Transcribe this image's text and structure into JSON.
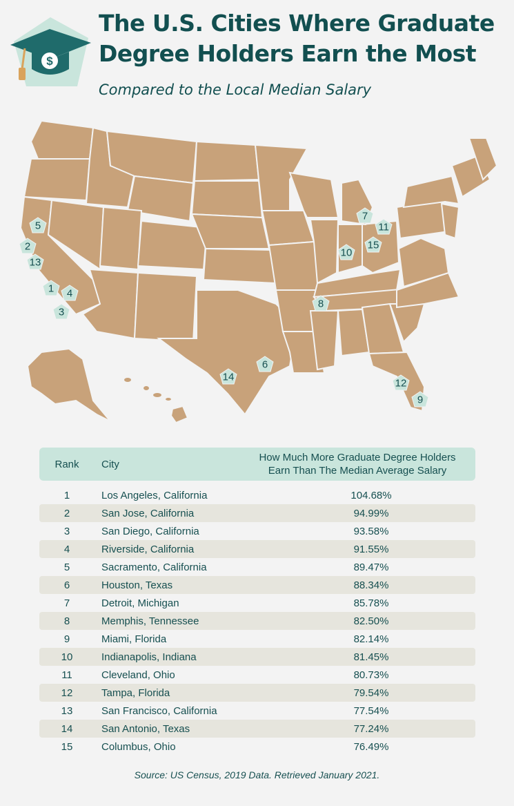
{
  "header": {
    "title_line1": "The U.S. Cities Where Graduate",
    "title_line2": "Degree Holders Earn the Most",
    "subtitle": "Compared to the Local Median Salary",
    "icon": "graduation-cap-dollar-icon"
  },
  "colors": {
    "background": "#f3f3f3",
    "state_fill": "#c8a27a",
    "marker_fill": "#c9e5dc",
    "text": "#164f50",
    "alt_row": "#e6e5dd"
  },
  "map": {
    "markers": [
      "1",
      "2",
      "3",
      "4",
      "5",
      "6",
      "7",
      "8",
      "9",
      "10",
      "11",
      "12",
      "13",
      "14",
      "15"
    ]
  },
  "table": {
    "headers": {
      "rank": "Rank",
      "city": "City",
      "pct_line1": "How Much More Graduate Degree Holders",
      "pct_line2": "Earn Than The Median Average Salary"
    },
    "rows": [
      {
        "rank": "1",
        "city": "Los Angeles, California",
        "pct": "104.68%"
      },
      {
        "rank": "2",
        "city": "San Jose, California",
        "pct": "94.99%"
      },
      {
        "rank": "3",
        "city": "San Diego, California",
        "pct": "93.58%"
      },
      {
        "rank": "4",
        "city": "Riverside, California",
        "pct": "91.55%"
      },
      {
        "rank": "5",
        "city": "Sacramento, California",
        "pct": "89.47%"
      },
      {
        "rank": "6",
        "city": "Houston, Texas",
        "pct": "88.34%"
      },
      {
        "rank": "7",
        "city": "Detroit, Michigan",
        "pct": "85.78%"
      },
      {
        "rank": "8",
        "city": "Memphis, Tennessee",
        "pct": "82.50%"
      },
      {
        "rank": "9",
        "city": "Miami, Florida",
        "pct": "82.14%"
      },
      {
        "rank": "10",
        "city": "Indianapolis, Indiana",
        "pct": "81.45%"
      },
      {
        "rank": "11",
        "city": "Cleveland, Ohio",
        "pct": "80.73%"
      },
      {
        "rank": "12",
        "city": "Tampa, Florida",
        "pct": "79.54%"
      },
      {
        "rank": "13",
        "city": "San Francisco, California",
        "pct": "77.54%"
      },
      {
        "rank": "14",
        "city": "San Antonio, Texas",
        "pct": "77.24%"
      },
      {
        "rank": "15",
        "city": "Columbus, Ohio",
        "pct": "76.49%"
      }
    ]
  },
  "footer": {
    "source": "Source: US Census, 2019 Data. Retrieved January 2021."
  }
}
